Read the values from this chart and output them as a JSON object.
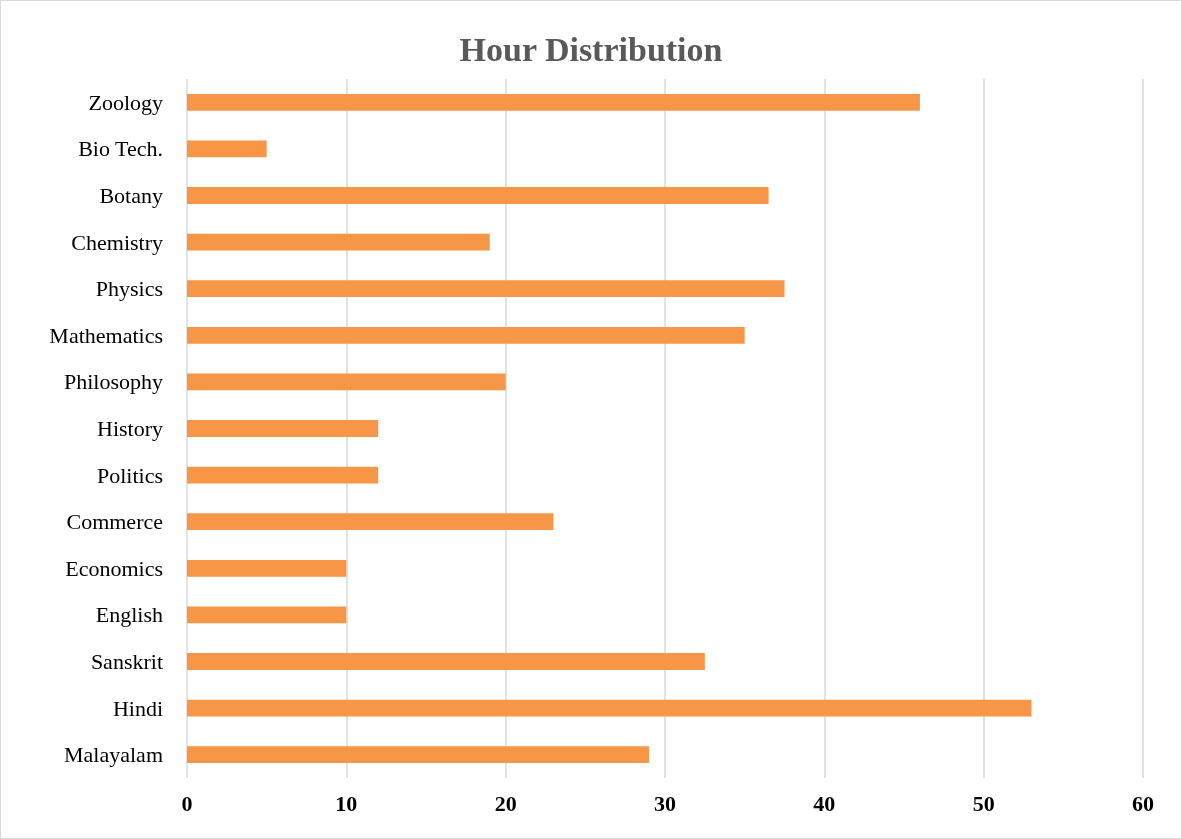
{
  "chart_data": {
    "type": "bar",
    "orientation": "horizontal",
    "title": "Hour Distribution",
    "categories": [
      "Zoology",
      "Bio Tech.",
      "Botany",
      "Chemistry",
      "Physics",
      "Mathematics",
      "Philosophy",
      "History",
      "Politics",
      "Commerce",
      "Economics",
      "English",
      "Sanskrit",
      "Hindi",
      "Malayalam"
    ],
    "values": [
      46,
      5,
      36.5,
      19,
      37.5,
      35,
      20,
      12,
      12,
      23,
      10,
      10,
      32.5,
      53,
      29
    ],
    "color": "#f79646",
    "xlim": [
      0,
      60
    ],
    "xticks": [
      0,
      10,
      20,
      30,
      40,
      50,
      60
    ],
    "grid": "x"
  }
}
